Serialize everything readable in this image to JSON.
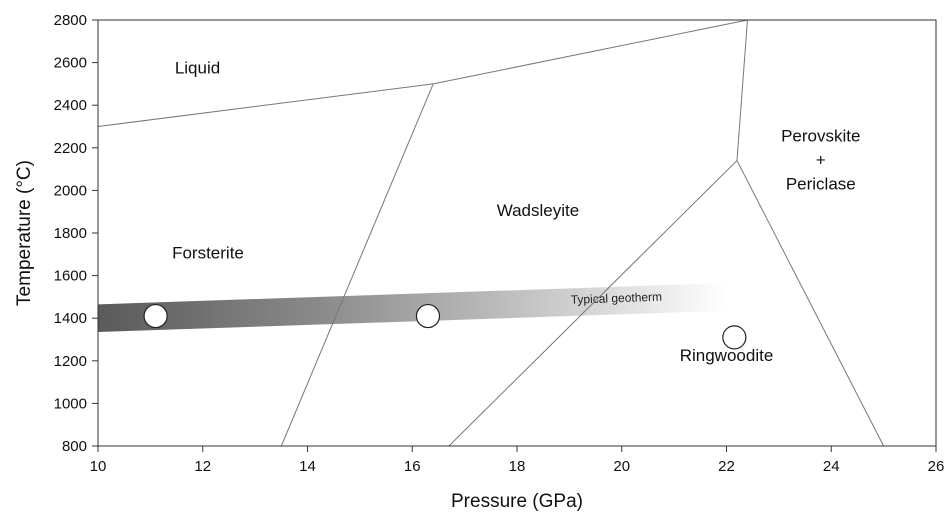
{
  "chart_data": {
    "type": "line",
    "xlabel": "Pressure (GPa)",
    "ylabel": "Temperature (°C)",
    "xlim": [
      10,
      26
    ],
    "ylim": [
      800,
      2800
    ],
    "x_ticks": [
      10,
      12,
      14,
      16,
      18,
      20,
      22,
      24,
      26
    ],
    "y_ticks": [
      800,
      1000,
      1200,
      1400,
      1600,
      1800,
      2000,
      2200,
      2400,
      2600,
      2800
    ],
    "grid": false,
    "boundaries": [
      {
        "id": "liquidus-1",
        "points": [
          [
            10,
            2300
          ],
          [
            16.4,
            2500
          ]
        ]
      },
      {
        "id": "liquidus-2",
        "points": [
          [
            16.4,
            2500
          ],
          [
            22.4,
            2800
          ]
        ]
      },
      {
        "id": "forsterite-wadsleyite",
        "points": [
          [
            13.5,
            800
          ],
          [
            16.4,
            2500
          ]
        ]
      },
      {
        "id": "wadsleyite-ringwoodite",
        "points": [
          [
            16.7,
            800
          ],
          [
            22.2,
            2140
          ]
        ]
      },
      {
        "id": "wadsleyite-perovskite",
        "points": [
          [
            22.2,
            2140
          ],
          [
            22.4,
            2800
          ]
        ]
      },
      {
        "id": "ringwoodite-perovskite",
        "points": [
          [
            22.2,
            2140
          ],
          [
            25.0,
            800
          ]
        ]
      }
    ],
    "regions": [
      {
        "label": "Liquid",
        "x": 11.9,
        "y": 2550
      },
      {
        "label": "Forsterite",
        "x": 12.1,
        "y": 1680
      },
      {
        "label": "Wadsleyite",
        "x": 18.4,
        "y": 1880
      },
      {
        "label": "Ringwoodite",
        "x": 22.0,
        "y": 1200
      },
      {
        "label_lines": [
          "Perovskite",
          "+",
          "Periclase"
        ],
        "x": 23.8,
        "y": 2230
      }
    ],
    "geotherm": {
      "label": "Typical geotherm",
      "start": [
        10,
        1400
      ],
      "end": [
        22,
        1500
      ],
      "band_half_width": 65,
      "label_pos": [
        19.9,
        1475
      ]
    },
    "markers": [
      {
        "x": 11.1,
        "y": 1410
      },
      {
        "x": 16.3,
        "y": 1410
      },
      {
        "x": 22.15,
        "y": 1310
      }
    ]
  }
}
